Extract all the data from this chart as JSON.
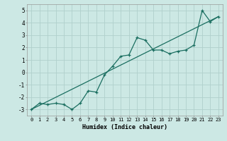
{
  "xlabel": "Humidex (Indice chaleur)",
  "ylabel": "",
  "background_color": "#cce8e4",
  "grid_color": "#b0d0cc",
  "line_color": "#1a6e60",
  "xlim": [
    -0.5,
    23.5
  ],
  "ylim": [
    -3.5,
    5.5
  ],
  "yticks": [
    -3,
    -2,
    -1,
    0,
    1,
    2,
    3,
    4,
    5
  ],
  "xticks": [
    0,
    1,
    2,
    3,
    4,
    5,
    6,
    7,
    8,
    9,
    10,
    11,
    12,
    13,
    14,
    15,
    16,
    17,
    18,
    19,
    20,
    21,
    22,
    23
  ],
  "scatter_x": [
    0,
    1,
    2,
    3,
    4,
    5,
    6,
    7,
    8,
    9,
    10,
    11,
    12,
    13,
    14,
    15,
    16,
    17,
    18,
    19,
    20,
    21,
    22,
    23
  ],
  "scatter_y": [
    -3.0,
    -2.5,
    -2.6,
    -2.5,
    -2.6,
    -3.0,
    -2.5,
    -1.5,
    -1.6,
    -0.2,
    0.5,
    1.3,
    1.4,
    2.8,
    2.6,
    1.8,
    1.8,
    1.5,
    1.7,
    1.8,
    2.2,
    5.0,
    4.1,
    4.5
  ],
  "line2_x": [
    0,
    23
  ],
  "line2_y": [
    -3.0,
    4.5
  ],
  "xlabel_fontsize": 6,
  "tick_fontsize": 5,
  "ytick_fontsize": 5.5
}
